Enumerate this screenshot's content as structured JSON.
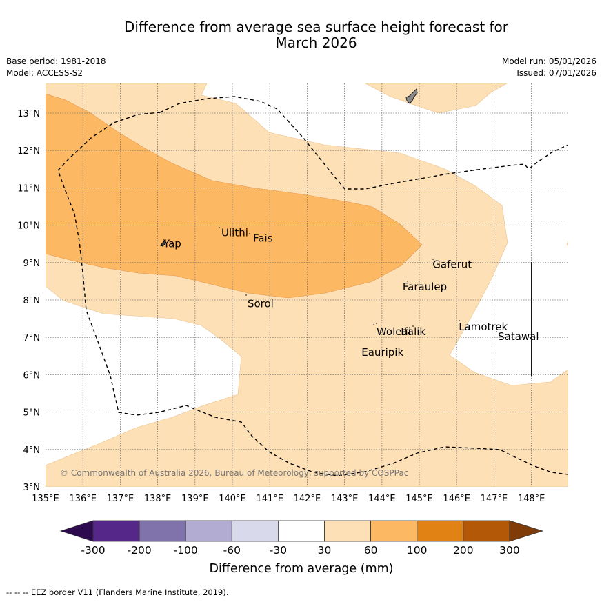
{
  "title_line1": "Difference from average sea surface height forecast for",
  "title_line2": "March 2026",
  "base_period": "Base period: 1981-2018",
  "model": "Model: ACCESS-S2",
  "model_run": "Model run: 05/01/2026",
  "issued": "Issued: 07/01/2026",
  "copyright": "© Commonwealth of Australia 2026, Bureau of Meteorology, supported by COSPPac",
  "footnote": "-- -- -- EEZ border V11 (Flanders Marine Institute, 2019).",
  "map": {
    "lon_range": [
      135,
      149
    ],
    "lat_range": [
      3,
      13.8
    ],
    "lon_ticks": [
      "135°E",
      "136°E",
      "137°E",
      "138°E",
      "139°E",
      "140°E",
      "141°E",
      "142°E",
      "143°E",
      "144°E",
      "145°E",
      "146°E",
      "147°E",
      "148°E"
    ],
    "lat_ticks": [
      "3°N",
      "4°N",
      "5°N",
      "6°N",
      "7°N",
      "8°N",
      "9°N",
      "10°N",
      "11°N",
      "12°N",
      "13°N"
    ],
    "places": [
      {
        "name": "Yap",
        "lon": 138.1,
        "lat": 9.5
      },
      {
        "name": "Ulithi",
        "lon": 139.65,
        "lat": 9.8
      },
      {
        "name": "Fais",
        "lon": 140.5,
        "lat": 9.65
      },
      {
        "name": "Sorol",
        "lon": 140.35,
        "lat": 7.9
      },
      {
        "name": "Gaferut",
        "lon": 145.3,
        "lat": 8.95
      },
      {
        "name": "Faraulep",
        "lon": 144.5,
        "lat": 8.35
      },
      {
        "name": "Woleai",
        "lon": 143.8,
        "lat": 7.15
      },
      {
        "name": "Ifalik",
        "lon": 144.45,
        "lat": 7.15
      },
      {
        "name": "Lamotrek",
        "lon": 146.0,
        "lat": 7.28
      },
      {
        "name": "Eauripik",
        "lon": 143.4,
        "lat": 6.6
      },
      {
        "name": "Satawal",
        "lon": 147.05,
        "lat": 7.02
      }
    ]
  },
  "colorbar": {
    "label": "Difference from average (mm)",
    "ticks": [
      "-300",
      "-200",
      "-100",
      "-60",
      "-30",
      "30",
      "60",
      "100",
      "200",
      "300"
    ],
    "colors": [
      "#2d0a4e",
      "#542788",
      "#8073ac",
      "#b2abd2",
      "#d8daeb",
      "#ffffff",
      "#fee0b6",
      "#fdb863",
      "#e08214",
      "#b35806",
      "#7f3b08"
    ]
  }
}
